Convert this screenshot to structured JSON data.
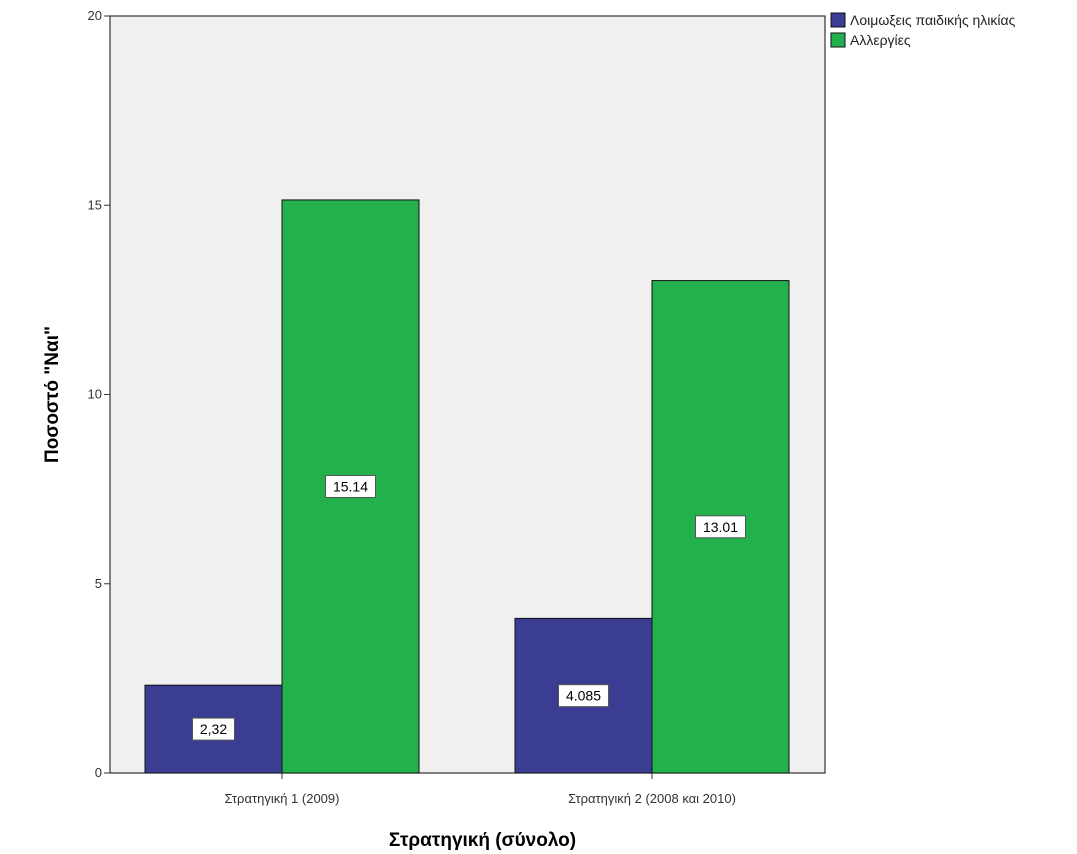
{
  "chart_data": {
    "type": "bar",
    "title": "",
    "xlabel": "Στρατηγική (σύνολο)",
    "ylabel": "Ποσοστό \"Ναι\"",
    "categories": [
      "Στρατηγική 1 (2009)",
      "Στρατηγική 2 (2008 και 2010)"
    ],
    "series": [
      {
        "name": "Λοιμωξεις παιδικής ηλικίας",
        "values": [
          2.32,
          4.085
        ],
        "labels": [
          "2,32",
          "4.085"
        ],
        "color": "#3a3d92"
      },
      {
        "name": "Αλλεργίες",
        "values": [
          15.14,
          13.01
        ],
        "labels": [
          "15.14",
          "13.01"
        ],
        "color": "#22b14c"
      }
    ],
    "ylim": [
      0,
      20
    ],
    "yticks": [
      0,
      5,
      10,
      15,
      20
    ],
    "grid": false,
    "legend_position": "top-right",
    "plot_background": "#f0f0f0"
  }
}
